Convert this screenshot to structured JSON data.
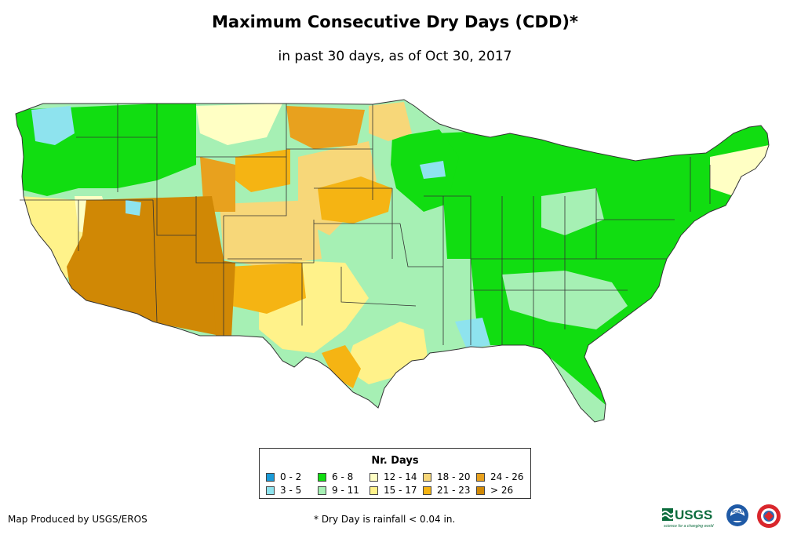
{
  "title": "Maximum Consecutive Dry Days (CDD)*",
  "subtitle": "in past 30 days, as of Oct 30, 2017",
  "legend": {
    "title": "Nr. Days",
    "items": [
      {
        "label": "0 - 2",
        "color": "#1a9bd8"
      },
      {
        "label": "3 - 5",
        "color": "#8ee3ee"
      },
      {
        "label": "6 - 8",
        "color": "#11dd11"
      },
      {
        "label": "9 - 11",
        "color": "#a6f0b4"
      },
      {
        "label": "12 - 14",
        "color": "#ffffc4"
      },
      {
        "label": "15 - 17",
        "color": "#fff28a"
      },
      {
        "label": "18 - 20",
        "color": "#f7d779"
      },
      {
        "label": "21 - 23",
        "color": "#f5b413"
      },
      {
        "label": "24 - 26",
        "color": "#e8a11e"
      },
      {
        "label": "> 26",
        "color": "#d08805"
      }
    ]
  },
  "credit": "Map Produced by USGS/EROS",
  "footnote": "* Dry Day is rainfall < 0.04 in.",
  "logos": {
    "usgs_text": "USGS",
    "usgs_tagline": "science for a changing world",
    "noaa_text": "NOAA"
  }
}
